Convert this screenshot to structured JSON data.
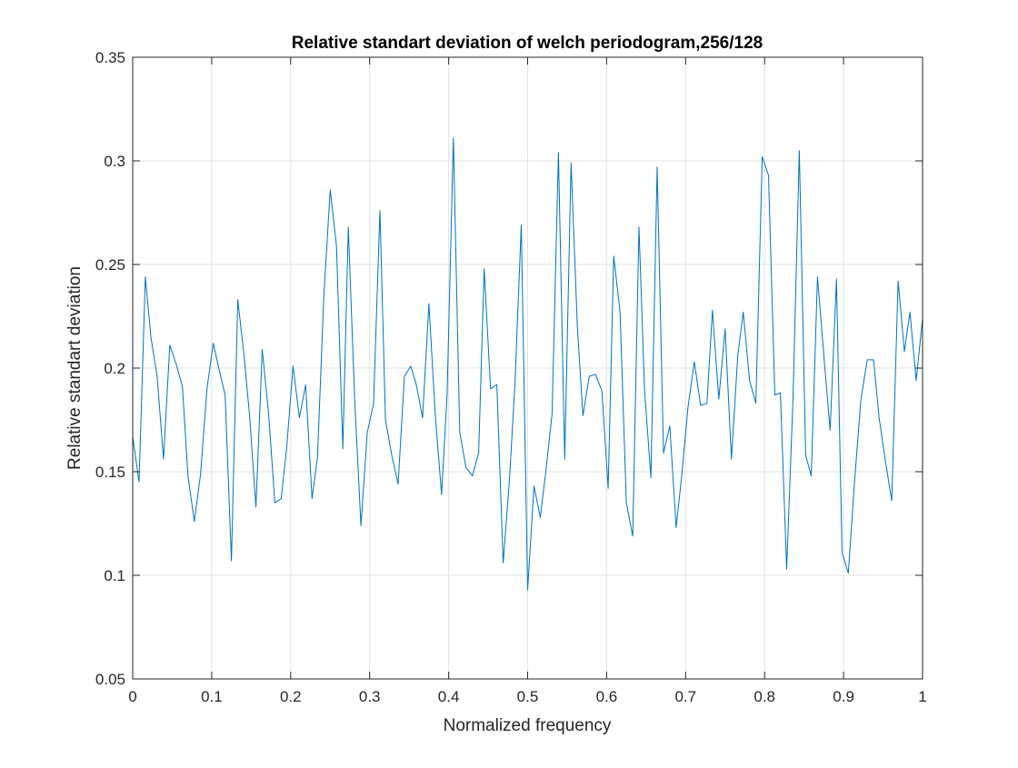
{
  "chart_data": {
    "type": "line",
    "title": "Relative standart deviation of welch periodogram,256/128",
    "xlabel": "Normalized frequency",
    "ylabel": "Relative standart deviation",
    "xlim": [
      0,
      1
    ],
    "ylim": [
      0.05,
      0.35
    ],
    "xticks": [
      0,
      0.1,
      0.2,
      0.3,
      0.4,
      0.5,
      0.6,
      0.7,
      0.8,
      0.9,
      1
    ],
    "xtick_labels": [
      "0",
      "0.1",
      "0.2",
      "0.3",
      "0.4",
      "0.5",
      "0.6",
      "0.7",
      "0.8",
      "0.9",
      "1"
    ],
    "yticks": [
      0.05,
      0.1,
      0.15,
      0.2,
      0.25,
      0.3,
      0.35
    ],
    "ytick_labels": [
      "0.05",
      "0.1",
      "0.15",
      "0.2",
      "0.25",
      "0.3",
      "0.35"
    ],
    "grid": true,
    "legend": "none",
    "series": [
      {
        "color": "#0072BD",
        "x": [
          0,
          0.008,
          0.016,
          0.023,
          0.031,
          0.039,
          0.047,
          0.055,
          0.063,
          0.07,
          0.078,
          0.086,
          0.094,
          0.102,
          0.109,
          0.117,
          0.125,
          0.133,
          0.141,
          0.148,
          0.156,
          0.164,
          0.172,
          0.18,
          0.188,
          0.195,
          0.203,
          0.211,
          0.219,
          0.227,
          0.234,
          0.242,
          0.25,
          0.258,
          0.266,
          0.273,
          0.281,
          0.289,
          0.297,
          0.305,
          0.313,
          0.32,
          0.328,
          0.336,
          0.344,
          0.352,
          0.359,
          0.367,
          0.375,
          0.383,
          0.391,
          0.398,
          0.406,
          0.414,
          0.422,
          0.43,
          0.438,
          0.445,
          0.453,
          0.461,
          0.469,
          0.477,
          0.484,
          0.492,
          0.5,
          0.508,
          0.516,
          0.523,
          0.531,
          0.539,
          0.547,
          0.555,
          0.563,
          0.57,
          0.578,
          0.586,
          0.594,
          0.602,
          0.609,
          0.617,
          0.625,
          0.633,
          0.641,
          0.648,
          0.656,
          0.664,
          0.672,
          0.68,
          0.688,
          0.695,
          0.703,
          0.711,
          0.719,
          0.727,
          0.734,
          0.742,
          0.75,
          0.758,
          0.766,
          0.773,
          0.781,
          0.789,
          0.797,
          0.805,
          0.813,
          0.82,
          0.828,
          0.836,
          0.844,
          0.852,
          0.859,
          0.867,
          0.875,
          0.883,
          0.891,
          0.898,
          0.906,
          0.914,
          0.922,
          0.93,
          0.938,
          0.945,
          0.953,
          0.961,
          0.969,
          0.977,
          0.984,
          0.992,
          1.0
        ],
        "y": [
          0.167,
          0.145,
          0.244,
          0.215,
          0.196,
          0.156,
          0.211,
          0.202,
          0.191,
          0.148,
          0.126,
          0.149,
          0.19,
          0.212,
          0.2,
          0.187,
          0.107,
          0.233,
          0.206,
          0.177,
          0.133,
          0.209,
          0.178,
          0.135,
          0.137,
          0.162,
          0.201,
          0.176,
          0.192,
          0.137,
          0.157,
          0.235,
          0.286,
          0.259,
          0.161,
          0.268,
          0.185,
          0.124,
          0.169,
          0.183,
          0.276,
          0.175,
          0.158,
          0.144,
          0.196,
          0.201,
          0.192,
          0.176,
          0.231,
          0.178,
          0.139,
          0.187,
          0.311,
          0.169,
          0.152,
          0.148,
          0.159,
          0.248,
          0.19,
          0.192,
          0.106,
          0.146,
          0.193,
          0.269,
          0.093,
          0.143,
          0.128,
          0.15,
          0.178,
          0.304,
          0.156,
          0.299,
          0.22,
          0.177,
          0.196,
          0.197,
          0.189,
          0.142,
          0.254,
          0.227,
          0.135,
          0.119,
          0.268,
          0.19,
          0.147,
          0.297,
          0.159,
          0.172,
          0.123,
          0.148,
          0.181,
          0.203,
          0.182,
          0.183,
          0.228,
          0.185,
          0.219,
          0.156,
          0.206,
          0.227,
          0.194,
          0.183,
          0.302,
          0.293,
          0.187,
          0.188,
          0.103,
          0.186,
          0.305,
          0.158,
          0.148,
          0.244,
          0.206,
          0.17,
          0.243,
          0.111,
          0.101,
          0.146,
          0.185,
          0.204,
          0.204,
          0.176,
          0.155,
          0.136,
          0.242,
          0.208,
          0.227,
          0.194,
          0.224
        ]
      }
    ]
  }
}
